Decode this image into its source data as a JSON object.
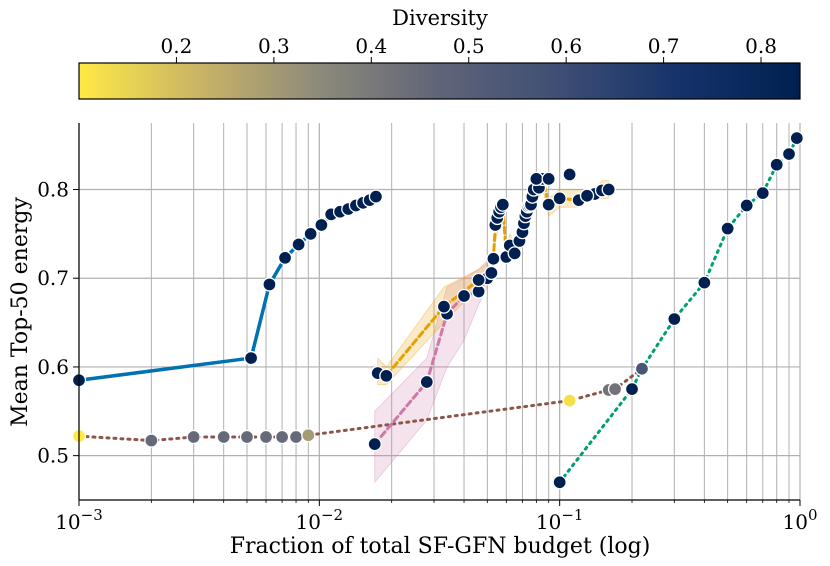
{
  "chart_data": {
    "type": "line",
    "xscale": "log",
    "xlim": [
      0.001,
      1.0
    ],
    "ylim": [
      0.45,
      0.875
    ],
    "xlabel": "Fraction of total SF-GFN budget (log)",
    "ylabel": "Mean Top-50 energy",
    "x_ticks": [
      {
        "value": 0.001,
        "base": "10",
        "exp": "−3"
      },
      {
        "value": 0.01,
        "base": "10",
        "exp": "−2"
      },
      {
        "value": 0.1,
        "base": "10",
        "exp": "−1"
      },
      {
        "value": 1.0,
        "base": "10",
        "exp": "0"
      }
    ],
    "y_ticks": [
      {
        "value": 0.5,
        "label": "0.5"
      },
      {
        "value": 0.6,
        "label": "0.6"
      },
      {
        "value": 0.7,
        "label": "0.7"
      },
      {
        "value": 0.8,
        "label": "0.8"
      }
    ],
    "grid": true,
    "colorbar": {
      "title": "Diversity",
      "range": [
        0.1,
        0.84
      ],
      "ticks": [
        {
          "value": 0.2,
          "label": "0.2"
        },
        {
          "value": 0.3,
          "label": "0.3"
        },
        {
          "value": 0.4,
          "label": "0.4"
        },
        {
          "value": 0.5,
          "label": "0.5"
        },
        {
          "value": 0.6,
          "label": "0.6"
        },
        {
          "value": 0.7,
          "label": "0.7"
        },
        {
          "value": 0.8,
          "label": "0.8"
        }
      ],
      "colormap": [
        "#ffe945",
        "#c9b466",
        "#8d8a7b",
        "#5f6478",
        "#3e4e74",
        "#15336a",
        "#002051"
      ]
    },
    "series": [
      {
        "name": "blue-solid",
        "color": "#0072b2",
        "dash": "solid",
        "x": [
          0.001,
          0.0052,
          0.0062,
          0.0072,
          0.0082,
          0.0092,
          0.0102,
          0.0112,
          0.0122,
          0.0132,
          0.0142,
          0.0152,
          0.0162,
          0.0172
        ],
        "y": [
          0.585,
          0.61,
          0.693,
          0.723,
          0.738,
          0.75,
          0.76,
          0.772,
          0.775,
          0.778,
          0.782,
          0.785,
          0.788,
          0.792
        ],
        "diversity": [
          0.84,
          0.84,
          0.84,
          0.84,
          0.84,
          0.84,
          0.84,
          0.84,
          0.84,
          0.84,
          0.84,
          0.84,
          0.84,
          0.84
        ]
      },
      {
        "name": "brown-dotted",
        "color": "#8c564b",
        "dash": "dotted",
        "x": [
          0.001,
          0.002,
          0.003,
          0.004,
          0.005,
          0.006,
          0.007,
          0.008,
          0.009,
          0.11,
          0.16,
          0.17,
          0.22
        ],
        "y": [
          0.522,
          0.517,
          0.521,
          0.521,
          0.521,
          0.521,
          0.521,
          0.521,
          0.523,
          0.562,
          0.574,
          0.575,
          0.598
        ],
        "diversity": [
          0.1,
          0.45,
          0.45,
          0.45,
          0.45,
          0.45,
          0.45,
          0.45,
          0.3,
          0.12,
          0.42,
          0.42,
          0.55
        ]
      },
      {
        "name": "green-dotted",
        "color": "#009e73",
        "dash": "dotted",
        "x": [
          0.1,
          0.2,
          0.22,
          0.3,
          0.4,
          0.5,
          0.6,
          0.7,
          0.8,
          0.9,
          0.97
        ],
        "y": [
          0.47,
          0.575,
          0.598,
          0.654,
          0.695,
          0.756,
          0.782,
          0.796,
          0.828,
          0.84,
          0.858
        ],
        "diversity": [
          0.84,
          0.84,
          0.55,
          0.84,
          0.84,
          0.84,
          0.84,
          0.84,
          0.84,
          0.84,
          0.84
        ]
      },
      {
        "name": "pink-dashed",
        "color": "#cc79a7",
        "dash": "dashed",
        "x": [
          0.017,
          0.028,
          0.034,
          0.04,
          0.046,
          0.05
        ],
        "y": [
          0.513,
          0.583,
          0.66,
          0.68,
          0.685,
          0.7
        ],
        "band_low": [
          0.47,
          0.54,
          0.6,
          0.63,
          0.67,
          0.69
        ],
        "band_high": [
          0.55,
          0.61,
          0.69,
          0.7,
          0.71,
          0.72
        ],
        "diversity": [
          0.84,
          0.84,
          0.84,
          0.84,
          0.84,
          0.84
        ]
      },
      {
        "name": "orange-dashed",
        "color": "#e69f00",
        "dash": "dashed",
        "x": [
          0.0175,
          0.019,
          0.033,
          0.046,
          0.052,
          0.053,
          0.054,
          0.055,
          0.056,
          0.057,
          0.058,
          0.06,
          0.062,
          0.065,
          0.068,
          0.07,
          0.071,
          0.072,
          0.073,
          0.074,
          0.075,
          0.076,
          0.077,
          0.078,
          0.082,
          0.085,
          0.09,
          0.1,
          0.12,
          0.13,
          0.14,
          0.15,
          0.16
        ],
        "y": [
          0.593,
          0.59,
          0.668,
          0.698,
          0.706,
          0.722,
          0.76,
          0.768,
          0.775,
          0.78,
          0.783,
          0.724,
          0.737,
          0.728,
          0.742,
          0.752,
          0.762,
          0.77,
          0.775,
          0.781,
          0.782,
          0.783,
          0.792,
          0.8,
          0.802,
          0.812,
          0.783,
          0.79,
          0.788,
          0.793,
          0.795,
          0.799,
          0.8
        ],
        "band_low": [
          0.58,
          0.58,
          0.65,
          0.69,
          0.7,
          0.71,
          0.74,
          0.75,
          0.76,
          0.77,
          0.77,
          0.72,
          0.73,
          0.72,
          0.73,
          0.74,
          0.75,
          0.76,
          0.77,
          0.77,
          0.77,
          0.77,
          0.78,
          0.79,
          0.79,
          0.8,
          0.77,
          0.78,
          0.78,
          0.79,
          0.79,
          0.79,
          0.79
        ],
        "band_high": [
          0.61,
          0.6,
          0.69,
          0.71,
          0.72,
          0.73,
          0.77,
          0.78,
          0.79,
          0.79,
          0.79,
          0.73,
          0.75,
          0.74,
          0.75,
          0.76,
          0.77,
          0.78,
          0.78,
          0.79,
          0.79,
          0.79,
          0.8,
          0.81,
          0.81,
          0.82,
          0.79,
          0.8,
          0.8,
          0.8,
          0.8,
          0.81,
          0.81
        ],
        "diversity": [
          0.84,
          0.84,
          0.84,
          0.84,
          0.84,
          0.84,
          0.84,
          0.84,
          0.84,
          0.84,
          0.84,
          0.84,
          0.84,
          0.84,
          0.84,
          0.84,
          0.84,
          0.84,
          0.84,
          0.84,
          0.84,
          0.84,
          0.84,
          0.84,
          0.84,
          0.84,
          0.84,
          0.84,
          0.84,
          0.84,
          0.84,
          0.84,
          0.84
        ]
      },
      {
        "name": "extra-points",
        "color": "#002051",
        "dash": "none",
        "x": [
          0.08,
          0.09,
          0.11,
          0.13
        ],
        "y": [
          0.812,
          0.812,
          0.817,
          0.793
        ],
        "diversity": [
          0.84,
          0.84,
          0.84,
          0.84
        ]
      }
    ]
  }
}
